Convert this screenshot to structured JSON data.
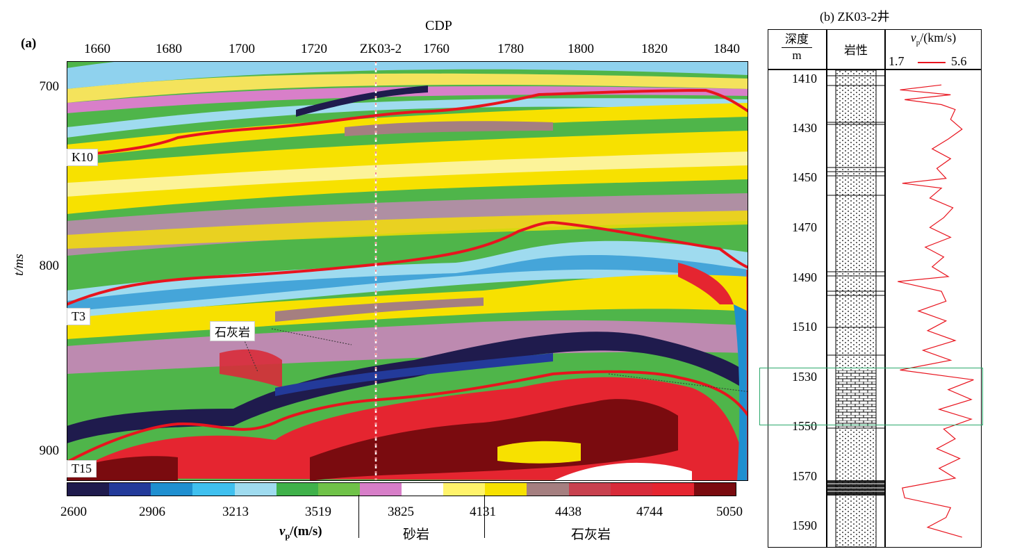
{
  "panel_a": {
    "label": "(a)",
    "xaxis_title": "CDP",
    "x_ticks": [
      "1660",
      "1680",
      "1700",
      "1720",
      "1760",
      "1780",
      "1800",
      "1820",
      "1840"
    ],
    "well_marker": "ZK03-2",
    "yaxis_title": "t/ms",
    "y_ticks": [
      "700",
      "800",
      "900"
    ],
    "horizons": [
      "K10",
      "T3",
      "T15"
    ],
    "annotation": "石灰岩",
    "colorbar": {
      "ticks": [
        "2600",
        "2906",
        "3213",
        "3519",
        "3825",
        "4131",
        "4438",
        "4744",
        "5050"
      ],
      "unit_label": "v",
      "unit_sub": "p",
      "unit_rest": "/(m/s)",
      "zone_sand": "砂岩",
      "zone_lime": "石灰岩",
      "colors": [
        "#1f1b4d",
        "#233a9a",
        "#1f8fd0",
        "#3fc0ef",
        "#9fdbef",
        "#3fb14a",
        "#6fc248",
        "#d77ec8",
        "#ffffff",
        "#fff36b",
        "#f7e100",
        "#a57f80",
        "#c8414f",
        "#d82b3a",
        "#e52530",
        "#7a0b0f"
      ]
    }
  },
  "panel_b": {
    "title": "(b)  ZK03-2井",
    "col_depth_top": "深度",
    "col_depth_unit": "m",
    "col_litho": "岩性",
    "col_vp_label": "v",
    "col_vp_sub": "p",
    "col_vp_rest": "/(km/s)",
    "vp_min": "1.7",
    "vp_max": "5.6",
    "depth_ticks": [
      "1410",
      "1430",
      "1450",
      "1470",
      "1490",
      "1510",
      "1530",
      "1550",
      "1570",
      "1590"
    ]
  },
  "chart_data": {
    "type": "line",
    "x": [
      1410,
      1412,
      1414,
      1416,
      1418,
      1420,
      1424,
      1428,
      1432,
      1436,
      1440,
      1444,
      1448,
      1450,
      1452,
      1456,
      1460,
      1464,
      1468,
      1472,
      1476,
      1480,
      1484,
      1488,
      1490,
      1494,
      1498,
      1502,
      1506,
      1510,
      1514,
      1518,
      1522,
      1526,
      1530,
      1534,
      1538,
      1542,
      1546,
      1550,
      1554,
      1558,
      1562,
      1566,
      1570,
      1574,
      1578,
      1582,
      1586,
      1590,
      1594
    ],
    "series": [
      {
        "values": [
          4.0,
          2.2,
          4.4,
          2.4,
          4.0,
          4.6,
          4.4,
          4.9,
          4.3,
          3.6,
          4.4,
          3.8,
          4.2,
          2.3,
          4.0,
          3.5,
          4.5,
          4.1,
          3.5,
          4.4,
          3.3,
          4.1,
          3.6,
          4.3,
          2.1,
          4.0,
          4.2,
          3.0,
          4.2,
          3.4,
          4.6,
          3.2,
          4.4,
          2.2,
          5.4,
          4.3,
          5.3,
          3.9,
          5.3,
          4.1,
          4.6,
          3.8,
          4.8,
          3.9,
          4.6,
          2.3,
          2.4,
          4.4,
          4.2,
          3.4,
          4.9
        ]
      }
    ],
    "xlabel": "深度/m",
    "ylabel": "vp/(km/s)",
    "ylim": [
      1.7,
      5.6
    ],
    "xlim": [
      1404,
      1598
    ]
  }
}
